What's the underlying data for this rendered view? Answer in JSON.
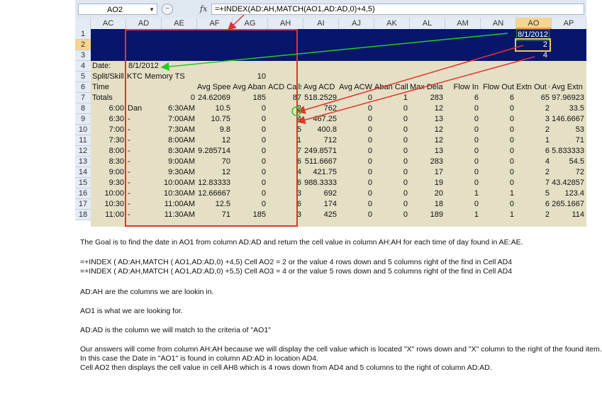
{
  "formula_bar": {
    "name_box": "AO2",
    "formula": "=+INDEX(AD:AH,MATCH(AO1,AD:AD,0)+4,5)",
    "fx_label": "fx",
    "cancel_glyph": "~"
  },
  "columns": [
    "AC",
    "AD",
    "AE",
    "AF",
    "AG",
    "AH",
    "AI",
    "AJ",
    "AK",
    "AL",
    "AM",
    "AN",
    "AO",
    "AP"
  ],
  "selected_column": "AO",
  "rows": [
    "1",
    "2",
    "3",
    "4",
    "5",
    "6",
    "7",
    "8",
    "9",
    "10",
    "11",
    "12",
    "13",
    "14",
    "15",
    "16",
    "17",
    "18"
  ],
  "selected_row": "2",
  "top_cells": {
    "ao1": "8/1/2012",
    "ao2": "2",
    "ao3": "4"
  },
  "info": {
    "date_label": "Date:",
    "date_value": "8/1/2012",
    "split_label": "Split/Skill",
    "split_value": "KTC Memory TS",
    "split_number": "10"
  },
  "headers": [
    "Time",
    "",
    "",
    "Avg Speed",
    "Avg Aban",
    "ACD Calls",
    "Avg ACD T",
    "Avg ACW",
    "Aban Calls",
    "Max Delay",
    "Flow In",
    "Flow Out",
    "Extn Out C",
    "Avg Extn O"
  ],
  "totals": [
    "Totals",
    "",
    "0",
    "24.62069",
    "185",
    "87",
    "518.2529",
    "0",
    "1",
    "283",
    "6",
    "6",
    "65",
    "97.96923"
  ],
  "data_rows": [
    [
      "6:00",
      "Dan",
      "6:30AM",
      "10.5",
      "0",
      "2",
      "762",
      "0",
      "0",
      "12",
      "0",
      "0",
      "2",
      "33.5"
    ],
    [
      "6:30",
      "-",
      "7:00AM",
      "10.75",
      "0",
      "4",
      "467.25",
      "0",
      "0",
      "13",
      "0",
      "0",
      "3",
      "146.6667"
    ],
    [
      "7:00",
      "-",
      "7:30AM",
      "9.8",
      "0",
      "5",
      "400.8",
      "0",
      "0",
      "12",
      "0",
      "0",
      "2",
      "53"
    ],
    [
      "7:30",
      "-",
      "8:00AM",
      "12",
      "0",
      "1",
      "712",
      "0",
      "0",
      "12",
      "0",
      "0",
      "1",
      "71"
    ],
    [
      "8:00",
      "-",
      "8:30AM",
      "9.285714",
      "0",
      "7",
      "249.8571",
      "0",
      "0",
      "13",
      "0",
      "0",
      "6",
      "5.833333"
    ],
    [
      "8:30",
      "-",
      "9:00AM",
      "70",
      "0",
      "6",
      "511.6667",
      "0",
      "0",
      "283",
      "0",
      "0",
      "4",
      "54.5"
    ],
    [
      "9:00",
      "-",
      "9:30AM",
      "12",
      "0",
      "4",
      "421.75",
      "0",
      "0",
      "17",
      "0",
      "0",
      "2",
      "72"
    ],
    [
      "9:30",
      "-",
      "10:00AM",
      "12.83333",
      "0",
      "6",
      "988.3333",
      "0",
      "0",
      "19",
      "0",
      "0",
      "7",
      "43.42857"
    ],
    [
      "10:00",
      "-",
      "10:30AM",
      "12.66667",
      "0",
      "3",
      "692",
      "0",
      "0",
      "20",
      "1",
      "1",
      "5",
      "123.4"
    ],
    [
      "10:30",
      "-",
      "11:00AM",
      "12.5",
      "0",
      "6",
      "174",
      "0",
      "0",
      "18",
      "0",
      "0",
      "6",
      "265.1667"
    ],
    [
      "11:00",
      "-",
      "11:30AM",
      "71",
      "185",
      "3",
      "425",
      "0",
      "0",
      "189",
      "1",
      "1",
      "2",
      "114"
    ]
  ],
  "notes": [
    "The Goal is to find the date in AO1 from column AD:AD and return the cell value in column AH:AH for each time of day found in AE:AE.",
    "=+INDEX ( AD:AH,MATCH ( AO1,AD:AD,0)  +4,5)   Cell AO2 = 2 or the value 4 rows down and 5 columns right of the find in Cell AD4",
    "=+INDEX ( AD:AH,MATCH ( AO1,AD:AD,0)  +5,5)   Cell AO3 = 4 or the value 5 rows down and 5 columns right of the find in Cell AD4",
    "AD:AH are the columns we are lookin in.",
    "AO1 is what we are looking for.",
    "AD:AD is the column we will match to the criteria of \"AO1\"",
    "Our answers will come from column AH:AH because we will display the cell value which is located \"X\" rows down and \"X\" column to the right of the found item.",
    "In this case the Date in \"AO1\" is found in column AD:AD in location AD4.",
    "Cell AO2 then displays the cell value in cell AH8 which is 4 rows down from AD4 and 5 columns to the right of column AD:AD."
  ],
  "colors": {
    "header_band": "#07166a",
    "data_band": "#e5dfc5",
    "red": "#e0342c",
    "green": "#22cc22",
    "selected": "#f6d58e"
  }
}
